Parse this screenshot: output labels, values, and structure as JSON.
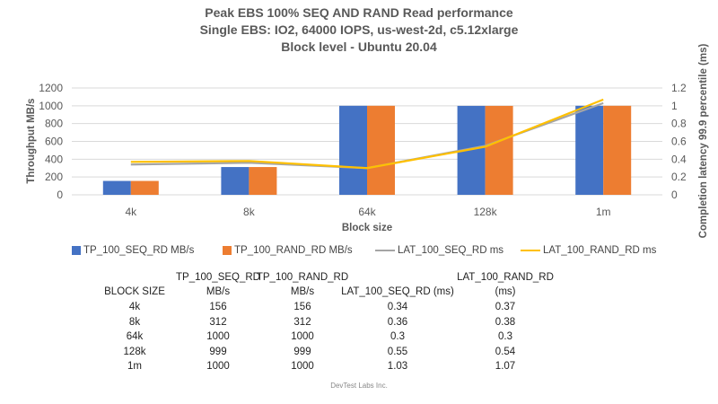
{
  "chart_data": {
    "type": "bar",
    "title": [
      "Peak EBS 100% SEQ AND RAND Read performance",
      "Single EBS: IO2, 64000 IOPS, us-west-2d, c5.12xlarge",
      "Block level - Ubuntu 20.04"
    ],
    "xlabel": "Block size",
    "ylabel": "Throughput MB/s",
    "y2label": "Completion latency 99.9 percentile (ms)",
    "ylim": [
      0,
      1200
    ],
    "yticks": [
      0,
      200,
      400,
      600,
      800,
      1000,
      1200
    ],
    "y2lim": [
      0,
      1.2
    ],
    "y2ticks": [
      "0",
      "0.2",
      "0.4",
      "0.6",
      "0.8",
      "1",
      "1.2"
    ],
    "categories": [
      "4k",
      "8k",
      "64k",
      "128k",
      "1m"
    ],
    "grid": true,
    "legend": "bottom",
    "series": [
      {
        "name": "TP_100_SEQ_RD MB/s",
        "type": "bar",
        "axis": "left",
        "color": "#4472C4",
        "values": [
          156,
          312,
          1000,
          999,
          1000
        ]
      },
      {
        "name": "TP_100_RAND_RD MB/s",
        "type": "bar",
        "axis": "left",
        "color": "#ED7D31",
        "values": [
          156,
          312,
          1000,
          999,
          1000
        ]
      },
      {
        "name": "LAT_100_SEQ_RD ms",
        "type": "line",
        "axis": "right",
        "color": "#A5A5A5",
        "values": [
          0.34,
          0.36,
          0.3,
          0.55,
          1.03
        ]
      },
      {
        "name": "LAT_100_RAND_RD ms",
        "type": "line",
        "axis": "right",
        "color": "#FFC000",
        "values": [
          0.37,
          0.38,
          0.3,
          0.54,
          1.07
        ]
      }
    ]
  },
  "table": {
    "headers": [
      [
        "",
        "BLOCK SIZE"
      ],
      [
        "TP_100_SEQ_RD",
        "MB/s"
      ],
      [
        "TP_100_RAND_RD",
        "MB/s"
      ],
      [
        "",
        "LAT_100_SEQ_RD (ms)"
      ],
      [
        "LAT_100_RAND_RD",
        "(ms)"
      ]
    ],
    "rows": [
      [
        "4k",
        "156",
        "156",
        "0.34",
        "0.37"
      ],
      [
        "8k",
        "312",
        "312",
        "0.36",
        "0.38"
      ],
      [
        "64k",
        "1000",
        "1000",
        "0.3",
        "0.3"
      ],
      [
        "128k",
        "999",
        "999",
        "0.55",
        "0.54"
      ],
      [
        "1m",
        "1000",
        "1000",
        "1.03",
        "1.07"
      ]
    ]
  },
  "footer": "DevTest Labs Inc."
}
